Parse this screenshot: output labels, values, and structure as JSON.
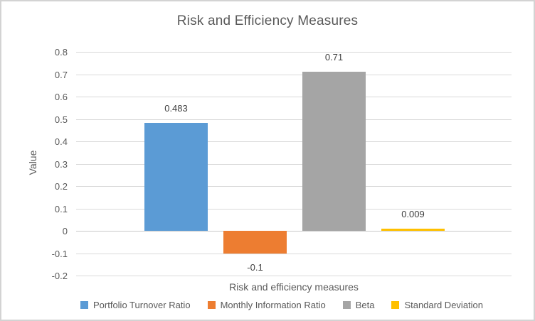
{
  "frame": {
    "background": "#FFFFFF",
    "border_color": "#D3D3D3"
  },
  "chart_data": {
    "type": "bar",
    "title": "Risk and Efficiency Measures",
    "xlabel": "Risk and efficiency measures",
    "ylabel": "Value",
    "categories": [
      "Risk and efficiency measures"
    ],
    "series": [
      {
        "name": "Portfolio Turnover Ratio",
        "value": 0.483,
        "data_label": "0.483",
        "color": "#5B9BD5"
      },
      {
        "name": "Monthly Information Ratio",
        "value": -0.1,
        "data_label": "-0.1",
        "color": "#ED7D31"
      },
      {
        "name": "Beta",
        "value": 0.71,
        "data_label": "0.71",
        "color": "#A5A5A5"
      },
      {
        "name": "Standard Deviation",
        "value": 0.009,
        "data_label": "0.009",
        "color": "#FFC000"
      }
    ],
    "ylim": [
      -0.2,
      0.8
    ],
    "ytick_labels": [
      "0.8",
      "0.7",
      "0.6",
      "0.5",
      "0.4",
      "0.3",
      "0.2",
      "0.1",
      "0",
      "-0.1",
      "-0.2"
    ],
    "grid": true,
    "legend_position": "bottom",
    "colors": {
      "axis_text": "#595959",
      "data_label_text": "#404040",
      "gridline": "#D9D9D9"
    }
  }
}
